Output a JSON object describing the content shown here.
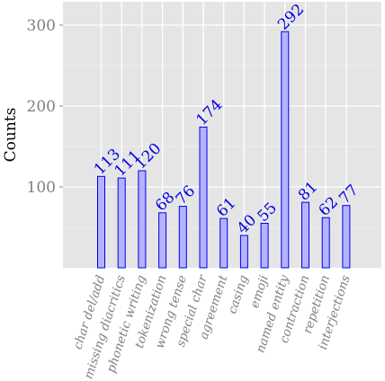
{
  "chart_data": {
    "type": "bar",
    "categories": [
      "char del/add",
      "missing diacritics",
      "phonetic writing",
      "tokenization",
      "wrong tense",
      "special char",
      "agreement",
      "casing",
      "emoji",
      "named entity",
      "contraction",
      "repetition",
      "interjections"
    ],
    "values": [
      113,
      111,
      120,
      68,
      76,
      174,
      61,
      40,
      55,
      292,
      81,
      62,
      77
    ],
    "data_labels": [
      "113",
      "111",
      "120",
      "68",
      "76",
      "174",
      "61",
      "40",
      "55",
      "292",
      "81",
      "62",
      "77"
    ],
    "xlabel": "",
    "ylabel": "Counts",
    "ylim": [
      0,
      330
    ],
    "yticks": [
      100,
      200,
      300
    ],
    "ytick_labels": [
      "100",
      "200",
      "300"
    ],
    "grid": true,
    "colors": {
      "panel": "#e5e5e5",
      "grid": "#ffffff",
      "bar_fill": "#b3b3ff",
      "bar_stroke": "#0000e6",
      "label": "#0000e6",
      "tick": "#7f7f7f"
    }
  }
}
